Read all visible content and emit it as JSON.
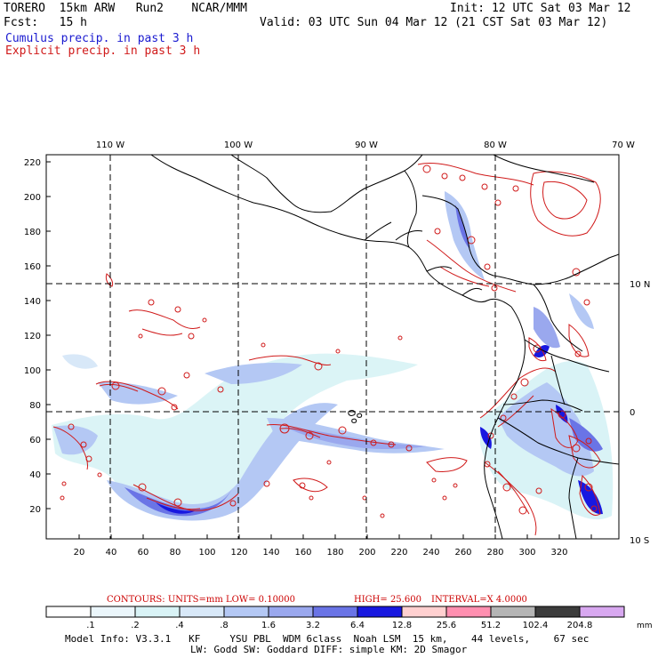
{
  "header": {
    "model_title": "TORERO  15km ARW   Run2    NCAR/MMM",
    "init": "Init: 12 UTC Sat 03 Mar 12",
    "fcst": "Fcst:   15 h",
    "valid": "Valid: 03 UTC Sun 04 Mar 12 (21 CST Sat 03 Mar 12)",
    "legend_cumulus": "Cumulus precip. in past 3 h",
    "legend_explicit": "Explicit precip. in past 3 h"
  },
  "colors": {
    "cumulus": "#1a1ad0",
    "explicit": "#d01a1a",
    "contours_text": "#cc0000"
  },
  "map": {
    "top_lon_labels": [
      "110 W",
      "100 W",
      "90 W",
      "80 W",
      "70 W"
    ],
    "right_lat_labels": [
      "10 N",
      "0",
      "10 S"
    ],
    "y_ticks": [
      "220",
      "200",
      "180",
      "160",
      "140",
      "120",
      "100",
      "80",
      "60",
      "40",
      "20"
    ],
    "x_ticks": [
      "20",
      "40",
      "60",
      "80",
      "100",
      "120",
      "140",
      "160",
      "180",
      "200",
      "220",
      "240",
      "260",
      "280",
      "300",
      "320"
    ]
  },
  "contours": {
    "units": "CONTOURS:  UNITS=mm  LOW= 0.10000",
    "high": "HIGH=  25.600",
    "interval": "INTERVAL=X  4.0000"
  },
  "colorbar": {
    "labels": [
      ".1",
      ".2",
      ".4",
      ".8",
      "1.6",
      "3.2",
      "6.4",
      "12.8",
      "25.6",
      "51.2",
      "102.4",
      "204.8"
    ],
    "unit": "mm",
    "colors": [
      "#ffffff",
      "#ebf6fb",
      "#d9f3f6",
      "#d8e8f8",
      "#b4c8f4",
      "#9aa8ee",
      "#6a74e6",
      "#1818e0",
      "#ffd0d0",
      "#ff8fb0",
      "#b5b5b5",
      "#3c3c3c",
      "#d8a8f0"
    ]
  },
  "footer": {
    "line1": "Model Info: V3.3.1   KF     YSU PBL  WDM 6class  Noah LSM  15 km,    44 levels,    67 sec",
    "line2": "LW: Godd SW: Goddard DIFF: simple KM: 2D Smagor"
  }
}
